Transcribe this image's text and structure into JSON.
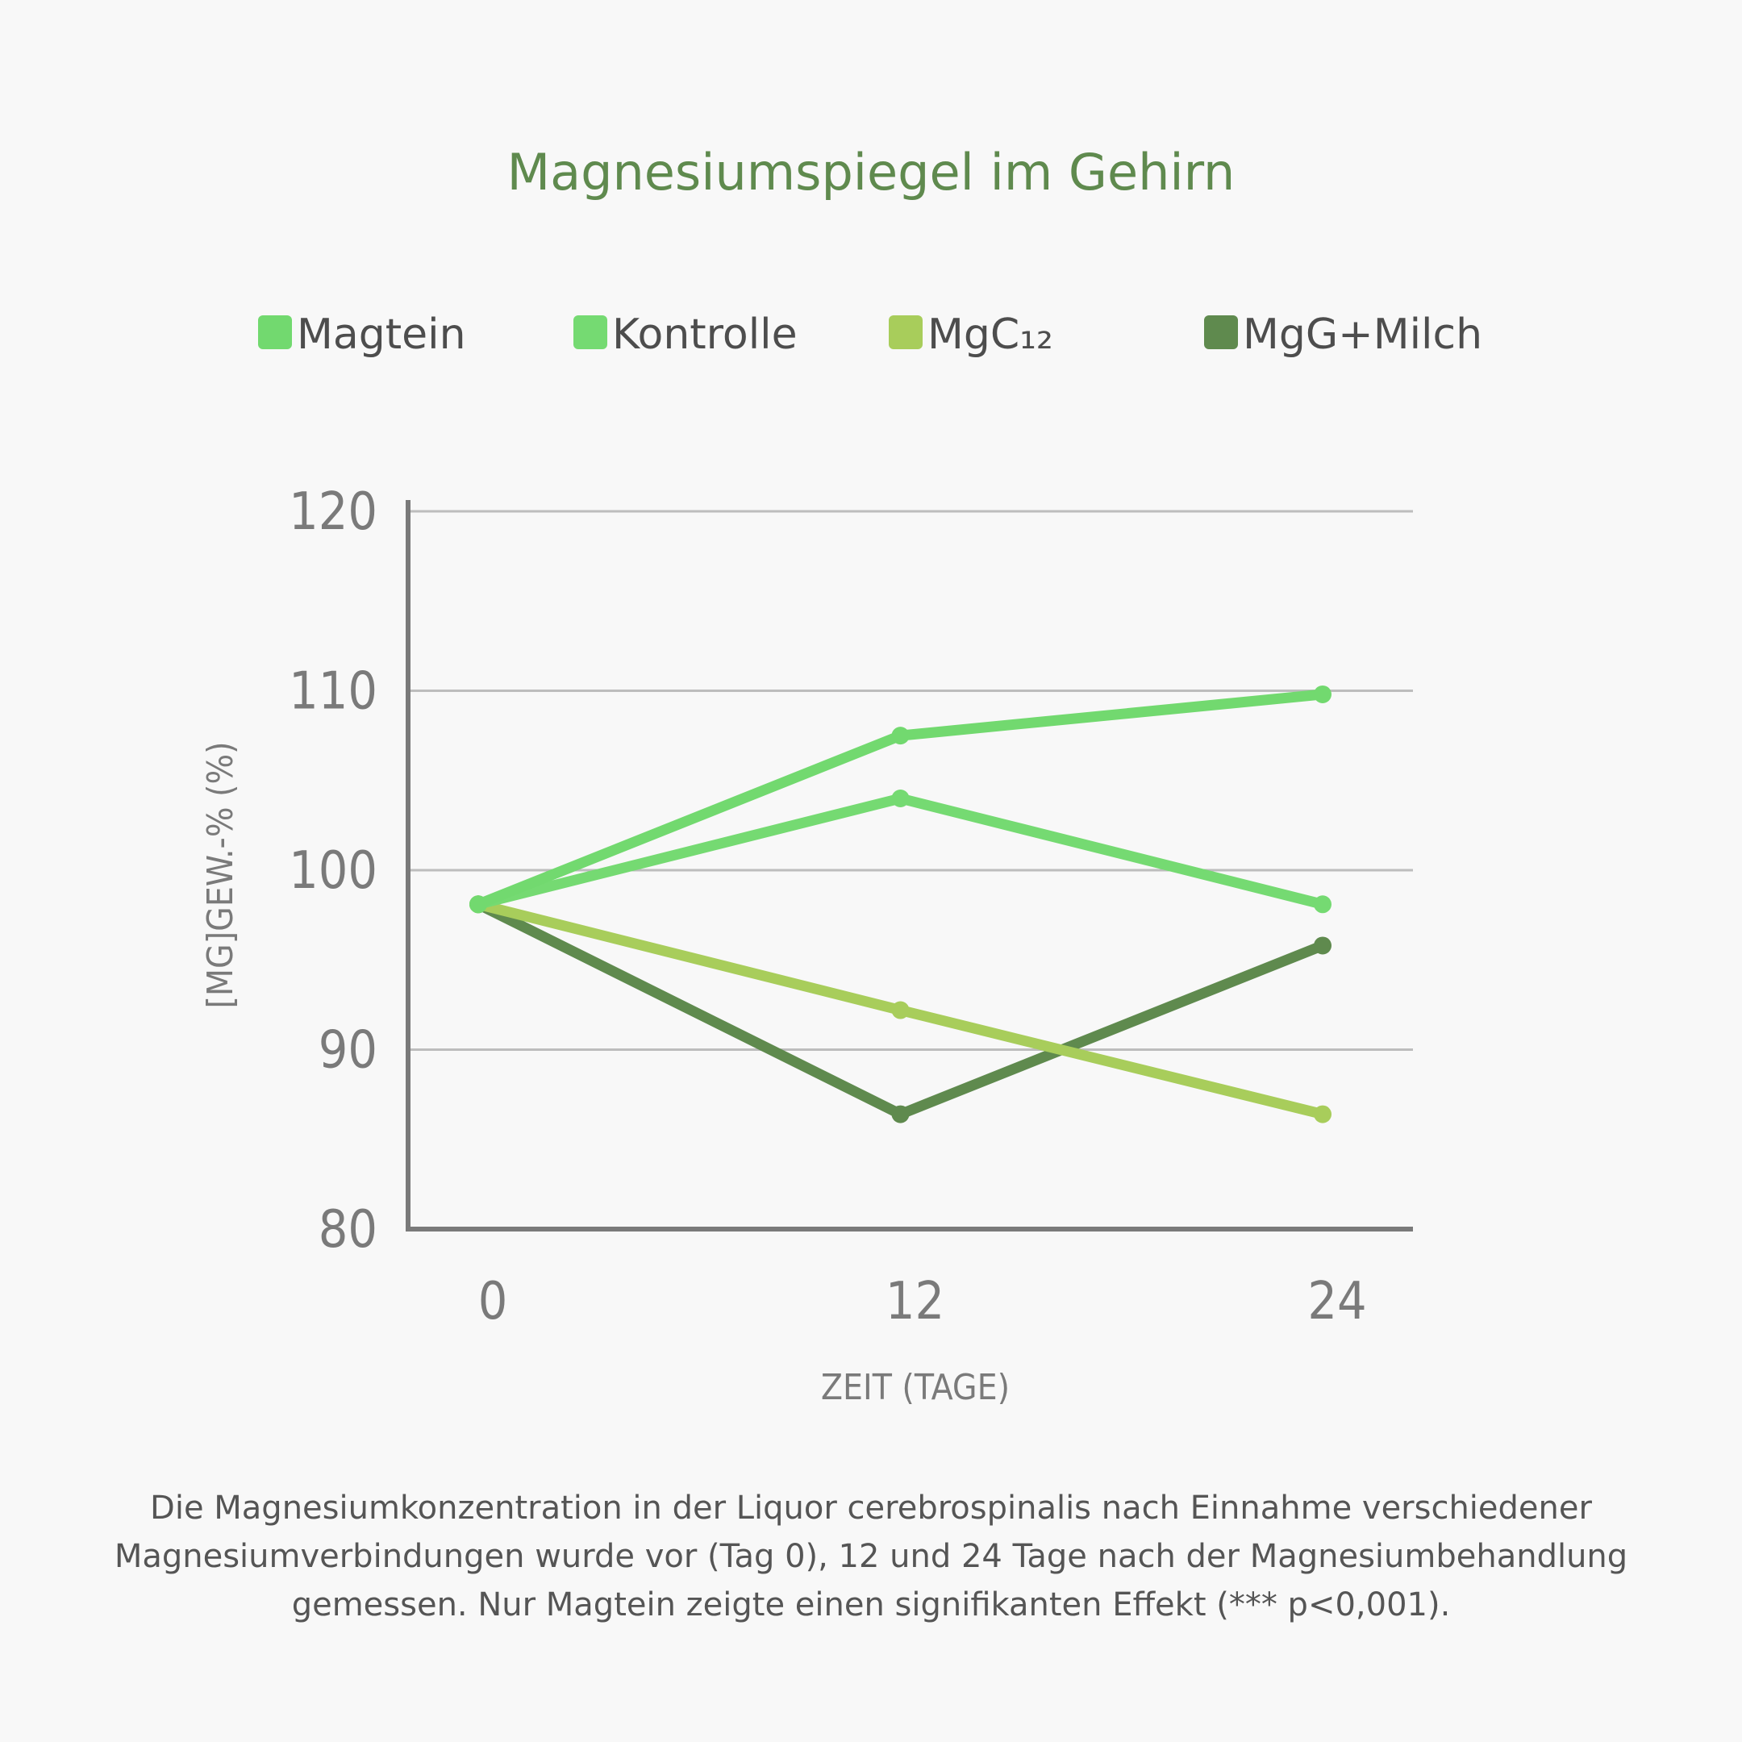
{
  "chart_data": {
    "type": "line",
    "title": "Magnesiumspiegel im Gehirn",
    "xlabel": "ZEIT (TAGE)",
    "ylabel": "[MG]GEW.-% (%)",
    "x": [
      0,
      12,
      24
    ],
    "x_tick_labels": [
      "0",
      "12",
      "24"
    ],
    "ylim": [
      80,
      120
    ],
    "y_ticks": [
      80,
      90,
      100,
      110,
      120
    ],
    "grid": true,
    "legend_position": "top",
    "series": [
      {
        "name": "Magtein",
        "color": "#72d96f",
        "values": [
          98.1,
          107.5,
          109.8
        ]
      },
      {
        "name": "Kontrolle",
        "color": "#75da72",
        "values": [
          98.1,
          104.0,
          98.1
        ]
      },
      {
        "name": "MgC₁₂",
        "color": "#a8cd5b",
        "values": [
          98.1,
          92.2,
          86.4
        ]
      },
      {
        "name": "MgG+Milch",
        "color": "#5f8a4e",
        "values": [
          98.1,
          86.4,
          95.8
        ]
      }
    ]
  },
  "caption": "Die Magnesiumkonzentration in der Liquor cerebrospinalis nach Einnahme verschiedener Magnesiumverbindungen wurde vor (Tag 0), 12 und 24 Tage nach der Magnesiumbehandlung gemessen. Nur Magtein zeigte einen signifikanten Effekt (*** p<0,001)."
}
